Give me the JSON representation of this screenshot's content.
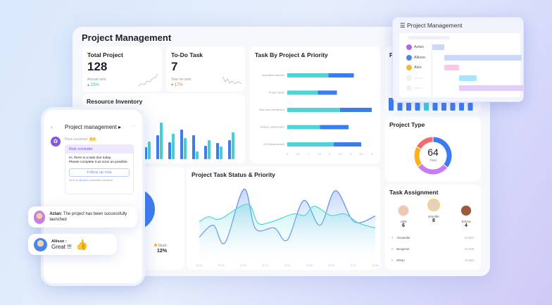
{
  "dashboard": {
    "title": "Project Management"
  },
  "total_project": {
    "label": "Total Project",
    "value": "128",
    "sub_label": "Annual ratio",
    "change": "23%",
    "change_color": "#2bc4b6"
  },
  "todo_task": {
    "label": "To-Do Task",
    "value": "7",
    "sub_label": "Year-on-year",
    "change": "17%",
    "change_color": "#f2702e"
  },
  "resource_inventory": {
    "title": "Resource Inventory",
    "series_colors": [
      "#3b7cf0",
      "#3fd0d8"
    ],
    "pairs": [
      [
        17,
        25
      ],
      [
        34,
        52
      ],
      [
        24,
        36
      ],
      [
        42,
        30
      ],
      [
        34,
        11
      ],
      [
        19,
        27
      ],
      [
        23,
        18
      ],
      [
        27,
        38
      ]
    ]
  },
  "task_by_project": {
    "title": "Task By Project & Priority",
    "chart_data": {
      "type": "bar",
      "orientation": "horizontal",
      "stacked": true,
      "categories": [
        "Innovative features",
        "Project alpha",
        "New user recruitment",
        "Feature optimization",
        "UX Enhancement"
      ],
      "series": [
        {
          "values": [
            1.95,
            1.45,
            2.5,
            1.55,
            2.2
          ],
          "color": "#4dd3da"
        },
        {
          "values": [
            1.2,
            0.9,
            1.5,
            1.35,
            1.3
          ],
          "color": "#3b7cf0"
        }
      ],
      "xlim": [
        0,
        4
      ],
      "xticks": [
        "0",
        "0.5",
        "1",
        "1.5",
        "2",
        "2.5",
        "3",
        "3.5",
        "4"
      ]
    }
  },
  "project_type": {
    "title": "Project Type",
    "total": "64",
    "total_label": "Total",
    "chart_data": {
      "type": "pie",
      "donut": true,
      "values": [
        36,
        29,
        18,
        17
      ],
      "colors": [
        "#3b7cf0",
        "#c47ef0",
        "#ffb01f",
        "#f56b6b"
      ]
    }
  },
  "task_status": {
    "title": "Project Task Status & Priority",
    "chart_data": {
      "type": "area",
      "xticks": [
        "02.20",
        "02.21",
        "02.22",
        "02.23",
        "02.24",
        "02.25",
        "02.26",
        "02.27",
        "02.28"
      ],
      "xlim": [
        20,
        28
      ],
      "ylim": [
        0,
        110
      ],
      "series": [
        {
          "color": "#5b8cf0",
          "x": [
            20,
            20.64,
            21.17,
            22.03,
            22.56,
            23.41,
            24.0,
            24.75,
            25.49,
            26.19,
            27.04,
            28
          ],
          "y": [
            35,
            52,
            27,
            103,
            47,
            48,
            31,
            87,
            52,
            101,
            57,
            65
          ]
        },
        {
          "color": "#4fd6d6",
          "x": [
            20,
            20.43,
            20.96,
            22.19,
            22.67,
            23.31,
            24.27,
            24.8,
            25.23,
            25.97,
            26.61,
            27.25,
            28
          ],
          "y": [
            57,
            64,
            61,
            82,
            55,
            57,
            68,
            66,
            79,
            66,
            68,
            55,
            48
          ]
        }
      ]
    }
  },
  "status_card": {
    "legend": "Stuck",
    "value": "12%",
    "dot_color": "#ffb01f"
  },
  "task_assignment": {
    "title": "Task Assignment",
    "top": [
      {
        "name": "Julia",
        "count": "6",
        "color": "#f0c8b0"
      },
      {
        "name": "Jennifer",
        "count": "8",
        "color": "#e6d2b8"
      },
      {
        "name": "Emma",
        "count": "4",
        "color": "#9b5a3a"
      }
    ],
    "rows": [
      {
        "rank": "4",
        "name": "Alexander",
        "value": "20,810"
      },
      {
        "rank": "5",
        "name": "Benjamin",
        "value": "20,300"
      },
      {
        "rank": "6",
        "name": "Ethan",
        "value": "10,810"
      }
    ]
  },
  "partial_card": {
    "title": "P",
    "bar_heights": [
      18,
      11,
      11,
      11,
      11,
      11,
      11,
      11,
      11,
      11
    ]
  },
  "gantt": {
    "title": "Project Management",
    "people": [
      "Azlan",
      "Allison",
      "Alex"
    ],
    "bar_colors": [
      "#c9d9fb",
      "#c9d9fb",
      "#fbc9e6",
      "#a5e6fb",
      "#e3cdfb"
    ]
  },
  "phone": {
    "title": "Project management",
    "more": "···",
    "assistant": "Base assistant",
    "bot_badge": "Bot",
    "card_title": "Risk reminder",
    "message_line1": "Hi, there is a task due today.",
    "message_line2": "Please complete it as soon as possible.",
    "follow_button": "Follow up now",
    "sent_prefix": "Sent by",
    "sent_user": "@Lisa's",
    "sent_suffix": "automated workflow"
  },
  "chat": [
    {
      "name": "Azlan:",
      "text": "The project has been successfully launched"
    },
    {
      "name": "Allison :",
      "text": "Great !!!"
    }
  ]
}
